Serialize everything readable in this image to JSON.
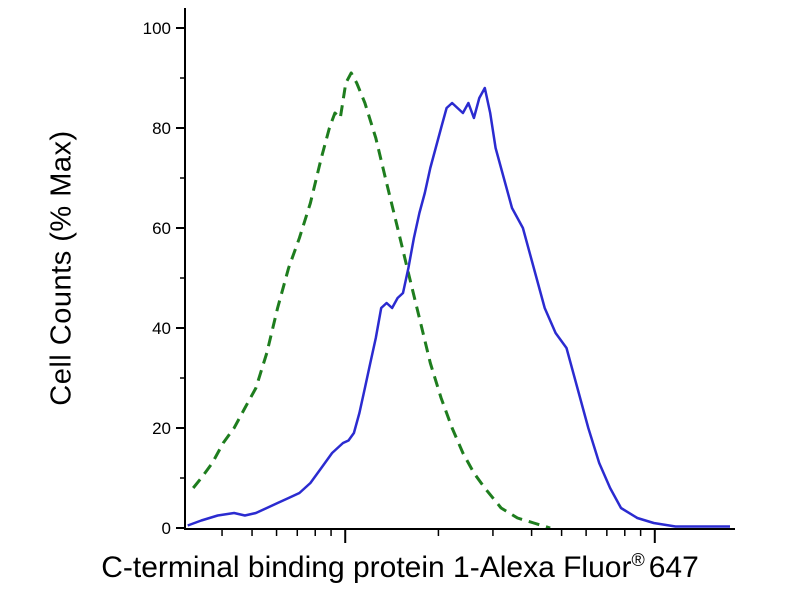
{
  "figure": {
    "background": "#ffffff",
    "axis_color": "#000000"
  },
  "xlabel": {
    "main": "C-terminal binding protein 1-Alexa Fluor",
    "registered_mark": "®",
    "suffix": "647"
  },
  "chart_data": {
    "type": "line",
    "subtype": "flow-cytometry-histogram-overlay",
    "title": "",
    "xlabel": "C-terminal binding protein 1-Alexa Fluor® 647",
    "ylabel": "Cell Counts (% Max)",
    "grid": false,
    "legend": "none",
    "ylim": [
      0,
      100
    ],
    "yticks": [
      0,
      20,
      40,
      60,
      80,
      100
    ],
    "yticks_minor": [
      10,
      30,
      50,
      70,
      90
    ],
    "x_axis": {
      "scale": "log",
      "tick_labels": [],
      "decade_positions_rel": [
        0.294,
        0.862
      ]
    },
    "series": [
      {
        "name": "dashed-green-control",
        "color": "#1e7d1e",
        "style": "dashed",
        "width": 3,
        "peak": {
          "x_rel": 30.5,
          "y": 91
        },
        "x_rel": [
          1.5,
          3,
          5,
          7,
          9,
          11,
          13,
          15,
          17,
          19,
          21,
          23,
          25,
          26.5,
          27.5,
          28.5,
          29.5,
          30.5,
          31.5,
          33,
          35,
          37,
          39,
          41,
          43,
          45,
          47,
          49,
          51,
          53,
          55,
          58,
          61,
          64,
          67
        ],
        "y": [
          8,
          10,
          13,
          17,
          20,
          24,
          28,
          35,
          44,
          52,
          58,
          65,
          74,
          80,
          83,
          82,
          89,
          91,
          89,
          85,
          78,
          69,
          60,
          51,
          42,
          33,
          26,
          20,
          15,
          11,
          8,
          4,
          2,
          1,
          0
        ]
      },
      {
        "name": "solid-blue-stained",
        "color": "#2b2bd0",
        "style": "solid",
        "width": 2.5,
        "peak": {
          "x_rel": 55,
          "y": 88
        },
        "x_rel": [
          0.5,
          3,
          6,
          9,
          11,
          13,
          15,
          17,
          19,
          21,
          23,
          25,
          27,
          29,
          30,
          31,
          32,
          33,
          34,
          35,
          36,
          37,
          38,
          39,
          40,
          41,
          42,
          43,
          44,
          45,
          46,
          47,
          48,
          49,
          50,
          51,
          52,
          53,
          54,
          55,
          56,
          57,
          58.5,
          60,
          62,
          64,
          66,
          68,
          70,
          72,
          74,
          76,
          78,
          80,
          83,
          86,
          90,
          100
        ],
        "y": [
          0.5,
          1.5,
          2.5,
          3,
          2.5,
          3,
          4,
          5,
          6,
          7,
          9,
          12,
          15,
          17,
          17.5,
          19,
          23,
          28,
          33,
          38,
          44,
          45,
          44,
          46,
          47,
          52,
          58,
          63,
          67,
          72,
          76,
          80,
          84,
          85,
          84,
          83,
          85,
          82,
          86,
          88,
          83,
          76,
          70,
          64,
          60,
          52,
          44,
          39,
          36,
          28,
          20,
          13,
          8,
          4,
          2,
          1,
          0.3,
          0.3
        ]
      }
    ]
  }
}
